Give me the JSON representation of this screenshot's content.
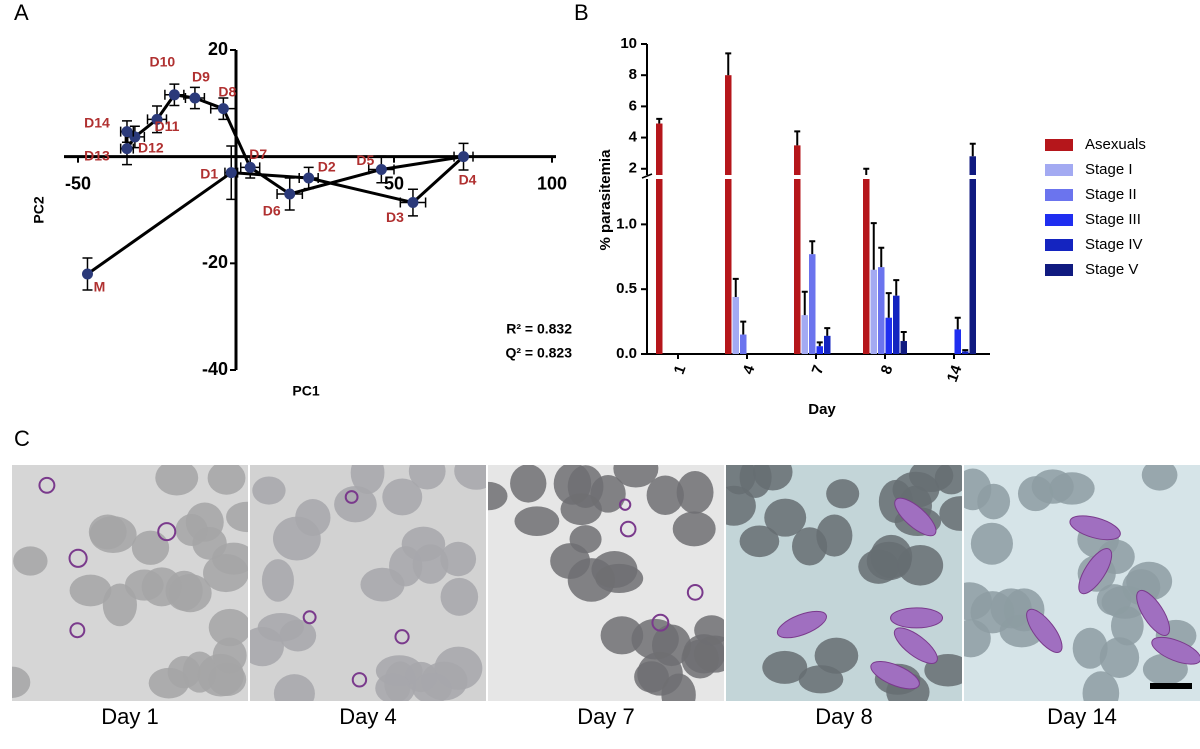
{
  "panel_labels": [
    "A",
    "B",
    "C"
  ],
  "chart_data": [
    {
      "type": "line",
      "color": "#2b3a7a",
      "line_color": "#000000",
      "label_color": "#b03030",
      "xlabel": "PC1",
      "ylabel": "PC2",
      "xlim": [
        -50,
        100
      ],
      "ylim": [
        -40,
        20
      ],
      "xticks": [
        -50,
        50,
        100
      ],
      "yticks": [
        20,
        -20,
        -40
      ],
      "point_labels": [
        "M",
        "D1",
        "D2",
        "D3",
        "D4",
        "D5",
        "D6",
        "D7",
        "D8",
        "D9",
        "D10",
        "D11",
        "D12",
        "D13",
        "D14"
      ],
      "x": [
        -47,
        -1.5,
        23,
        56,
        72,
        46,
        17,
        4.5,
        -4,
        -13,
        -19.5,
        -25,
        -32,
        -34.5,
        -34.5
      ],
      "values": [
        -22,
        -3,
        -4,
        -8.6,
        0,
        -2.4,
        -7,
        -2,
        9,
        11,
        11.6,
        7,
        3.7,
        1.5,
        4.7
      ],
      "xerr": [
        0,
        2,
        3,
        4,
        3,
        4,
        4,
        3,
        4,
        3,
        3,
        3,
        3,
        2,
        2
      ],
      "yerr": [
        3,
        5,
        2,
        2.5,
        2.5,
        2.5,
        3,
        2,
        2,
        2,
        2,
        2.5,
        2,
        3,
        2
      ],
      "annotations": [
        "R² = 0.832",
        "Q² = 0.823"
      ]
    },
    {
      "type": "bar",
      "xlabel": "Day",
      "ylabel": "% parasitemia",
      "categories": [
        "1",
        "4",
        "7",
        "8",
        "14"
      ],
      "ylim": [
        0,
        10
      ],
      "axis_break": [
        1.35,
        1.6
      ],
      "yticks": [
        {
          "value": 0,
          "label": "0.0"
        },
        {
          "value": 0.5,
          "label": "0.5"
        },
        {
          "value": 1,
          "label": "1.0"
        },
        2,
        4,
        6,
        8,
        10
      ],
      "series": [
        {
          "name": "Asexuals",
          "color": "#b5161b",
          "values": [
            4.9,
            8.0,
            3.5,
            1.6,
            0
          ],
          "errors": [
            0.3,
            1.4,
            0.9,
            0.4,
            0
          ]
        },
        {
          "name": "Stage I",
          "color": "#a3aaf2",
          "values": [
            0,
            0.44,
            0.3,
            0.65,
            0
          ],
          "errors": [
            0,
            0.14,
            0.18,
            0.36,
            0
          ]
        },
        {
          "name": "Stage II",
          "color": "#6b74ee",
          "values": [
            0,
            0.15,
            0.77,
            0.67,
            0
          ],
          "errors": [
            0,
            0.1,
            0.1,
            0.15,
            0
          ]
        },
        {
          "name": "Stage III",
          "color": "#1f2ef0",
          "values": [
            0,
            0,
            0.06,
            0.28,
            0.19
          ],
          "errors": [
            0,
            0,
            0.03,
            0.19,
            0.09
          ]
        },
        {
          "name": "Stage IV",
          "color": "#1424c0",
          "values": [
            0,
            0,
            0.14,
            0.45,
            0.02
          ],
          "errors": [
            0,
            0,
            0.06,
            0.12,
            0.01
          ]
        },
        {
          "name": "Stage V",
          "color": "#101a80",
          "values": [
            0,
            0,
            0,
            0.1,
            2.8
          ],
          "errors": [
            0,
            0,
            0,
            0.07,
            0.8
          ]
        }
      ]
    }
  ],
  "micrographs": {
    "captions": [
      "Day 1",
      "Day 4",
      "Day 7",
      "Day 8",
      "Day 14"
    ]
  }
}
